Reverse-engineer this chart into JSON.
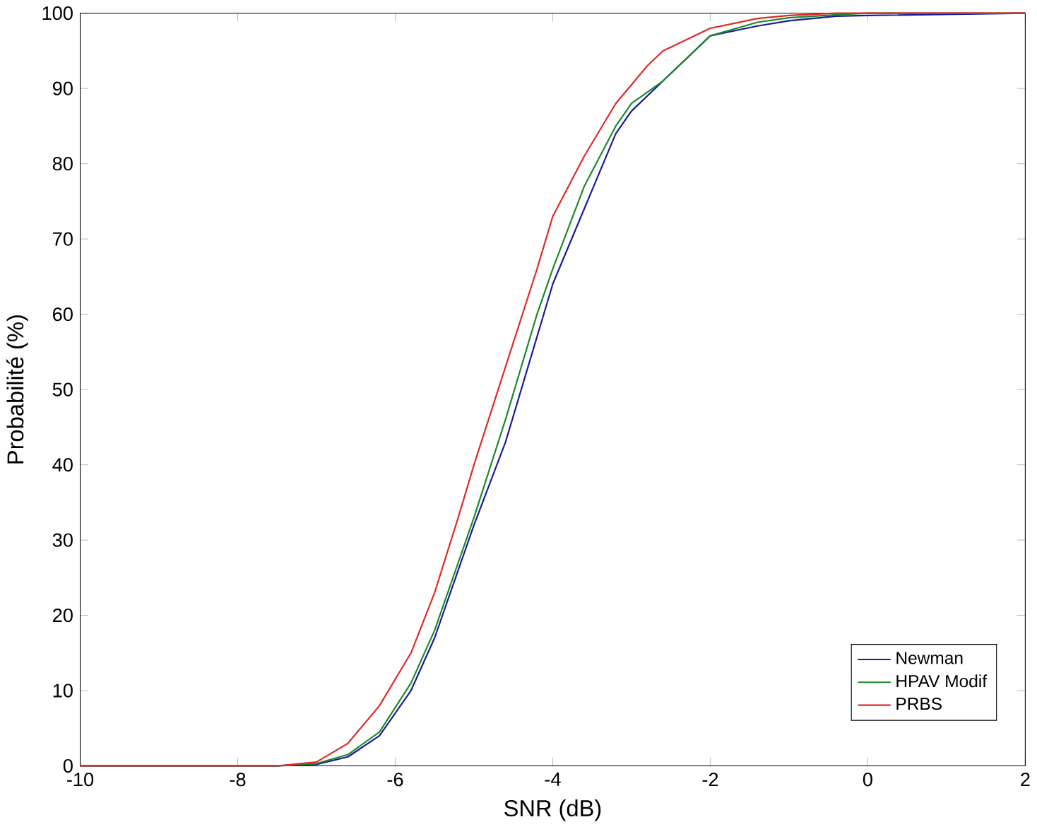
{
  "chart_data": {
    "type": "line",
    "xlabel": "SNR (dB)",
    "ylabel": "Probabilité (%)",
    "xlim": [
      -10,
      2
    ],
    "ylim": [
      0,
      100
    ],
    "xticks": [
      -10,
      -8,
      -6,
      -4,
      -2,
      0,
      2
    ],
    "yticks": [
      0,
      10,
      20,
      30,
      40,
      50,
      60,
      70,
      80,
      90,
      100
    ],
    "grid": false,
    "legend": "bottom right",
    "marker": "none",
    "line_style": "solid",
    "series": [
      {
        "name": "Newman",
        "color": "#1a1a9a",
        "x": [
          -10,
          -7.5,
          -7,
          -6.6,
          -6.2,
          -5.8,
          -5.5,
          -5.2,
          -5,
          -4.6,
          -4.2,
          -4,
          -3.6,
          -3.2,
          -3,
          -2.6,
          -2.2,
          -2,
          -1.4,
          -1,
          -0.4,
          0,
          2
        ],
        "values": [
          0,
          0,
          0.2,
          1.2,
          4,
          10,
          17,
          26,
          32,
          43,
          57,
          64,
          74,
          84,
          87,
          91,
          95,
          97,
          98.3,
          99,
          99.6,
          99.7,
          100
        ]
      },
      {
        "name": "HPAV Modif",
        "color": "#1a8a2a",
        "x": [
          -10,
          -7.5,
          -7,
          -6.6,
          -6.2,
          -5.8,
          -5.5,
          -5.2,
          -5,
          -4.6,
          -4.2,
          -4,
          -3.6,
          -3.2,
          -3,
          -2.6,
          -2.2,
          -2,
          -1.4,
          -1,
          -0.4,
          0,
          2
        ],
        "values": [
          0,
          0,
          0.3,
          1.5,
          4.5,
          11,
          18,
          27,
          33,
          46,
          60,
          66,
          77,
          85,
          88,
          91,
          95,
          97,
          98.8,
          99.4,
          99.8,
          100,
          100
        ]
      },
      {
        "name": "PRBS",
        "color": "#e02828",
        "x": [
          -10,
          -7.5,
          -7,
          -6.6,
          -6.2,
          -5.8,
          -5.5,
          -5.2,
          -5,
          -4.6,
          -4.2,
          -4,
          -3.6,
          -3.2,
          -2.8,
          -2.6,
          -2,
          -1.4,
          -1,
          -0.4,
          2
        ],
        "values": [
          0,
          0,
          0.5,
          3,
          8,
          15,
          23,
          33,
          40,
          53,
          66,
          73,
          81,
          88,
          93,
          95,
          98,
          99.3,
          99.7,
          100,
          100
        ]
      }
    ]
  }
}
